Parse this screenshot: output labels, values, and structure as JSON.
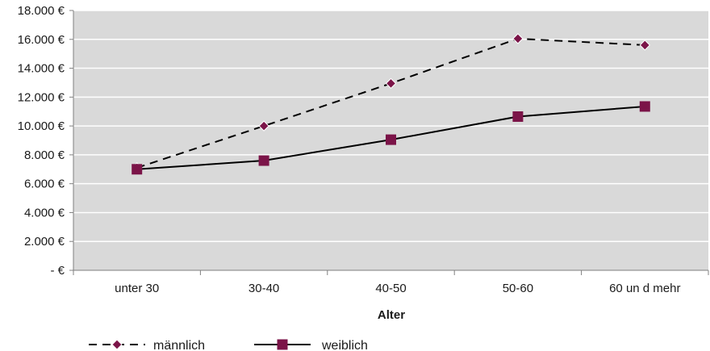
{
  "chart_data": {
    "type": "line",
    "title": "",
    "xlabel": "Alter",
    "ylabel": "",
    "categories": [
      "unter 30",
      "30-40",
      "40-50",
      "50-60",
      "60 un d mehr"
    ],
    "y_tick_labels": [
      "- €",
      "2.000 €",
      "4.000 €",
      "6.000 €",
      "8.000 €",
      "10.000 €",
      "12.000 €",
      "14.000 €",
      "16.000 €",
      "18.000 €"
    ],
    "y_tick_values": [
      0,
      2000,
      4000,
      6000,
      8000,
      10000,
      12000,
      14000,
      16000,
      18000
    ],
    "ylim": [
      0,
      18000
    ],
    "grid": true,
    "legend_position": "bottom-left",
    "colors": {
      "plot_background": "#d9d9d9",
      "gridline": "#ffffff",
      "line": "#000000",
      "marker": "#7b1448"
    },
    "series": [
      {
        "name": "männlich",
        "values": [
          7100,
          10000,
          12950,
          16050,
          15600
        ],
        "line_style": "dashed",
        "marker": "diamond"
      },
      {
        "name": "weiblich",
        "values": [
          7000,
          7600,
          9050,
          10650,
          11350
        ],
        "line_style": "solid",
        "marker": "square"
      }
    ]
  }
}
